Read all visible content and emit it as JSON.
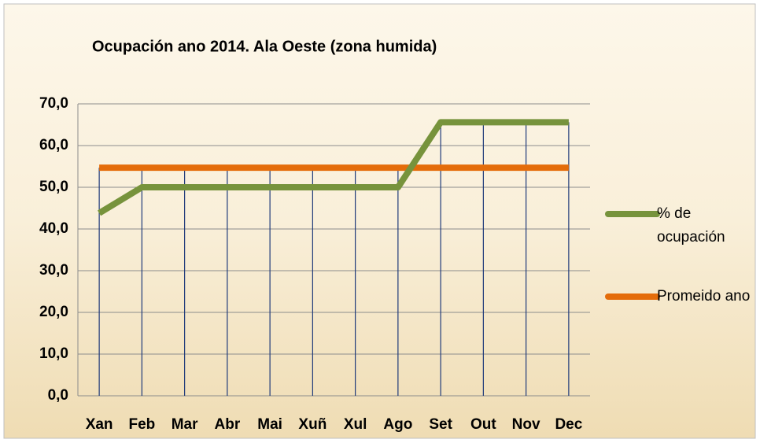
{
  "chart_data": {
    "type": "line",
    "title": "Ocupación ano 2014.  Ala Oeste (zona humida)",
    "categories": [
      "Xan",
      "Feb",
      "Mar",
      "Abr",
      "Mai",
      "Xuñ",
      "Xul",
      "Ago",
      "Set",
      "Out",
      "Nov",
      "Dec"
    ],
    "series": [
      {
        "name": "% de ocupación",
        "color": "#77933c",
        "values": [
          43.8,
          50,
          50,
          50,
          50,
          50,
          50,
          50,
          65.6,
          65.6,
          65.6,
          65.6
        ]
      },
      {
        "name": "Promeido ano",
        "color": "#e46c0a",
        "values": [
          54.7,
          54.7,
          54.7,
          54.7,
          54.7,
          54.7,
          54.7,
          54.7,
          54.7,
          54.7,
          54.7,
          54.7
        ]
      }
    ],
    "ylim": [
      0,
      70
    ],
    "yticks": [
      {
        "value": 0,
        "label": "0,0"
      },
      {
        "value": 10,
        "label": "10,0"
      },
      {
        "value": 20,
        "label": "20,0"
      },
      {
        "value": 30,
        "label": "30,0"
      },
      {
        "value": 40,
        "label": "40,0"
      },
      {
        "value": 50,
        "label": "50,0"
      },
      {
        "value": 60,
        "label": "60,0"
      },
      {
        "value": 70,
        "label": "70,0"
      }
    ],
    "grid": true,
    "legend": "right"
  }
}
